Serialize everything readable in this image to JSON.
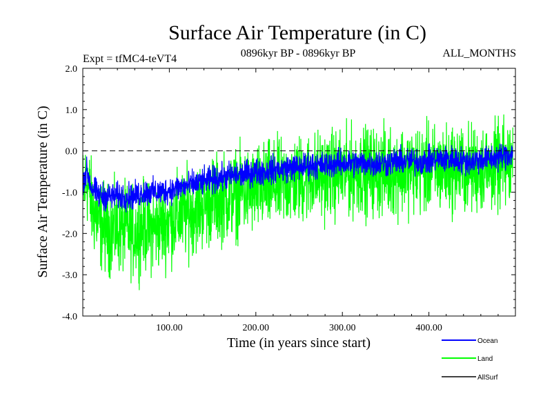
{
  "chart_data": {
    "type": "line",
    "title": "Surface Air Temperature (in C)",
    "subtitle_left": "Expt = tfMC4-teVT4",
    "subtitle_center": "0896kyr BP - 0896kyr BP",
    "subtitle_right": "ALL_MONTHS",
    "xlabel": "Time (in years since start)",
    "ylabel": "Surface Air Temperature (in C)",
    "xlim": [
      0,
      500
    ],
    "ylim": [
      -4,
      2
    ],
    "x_ticks": [
      100,
      200,
      300,
      400
    ],
    "x_tick_labels": [
      "100.00",
      "200.00",
      "300.00",
      "400.00"
    ],
    "y_ticks": [
      -4,
      -3,
      -2,
      -1,
      0,
      1,
      2
    ],
    "y_tick_labels": [
      "-4.0",
      "-3.0",
      "-2.0",
      "-1.0",
      "0.0",
      "1.0",
      "2.0"
    ],
    "reference_line": 0,
    "series": [
      {
        "name": "Land",
        "color": "#00ff00",
        "x": [
          0,
          5,
          10,
          20,
          30,
          40,
          50,
          60,
          70,
          80,
          90,
          100,
          110,
          120,
          130,
          140,
          150,
          160,
          170,
          180,
          190,
          200,
          210,
          220,
          230,
          240,
          250,
          260,
          270,
          280,
          290,
          300,
          310,
          320,
          330,
          340,
          350,
          360,
          370,
          380,
          390,
          400,
          410,
          420,
          430,
          440,
          450,
          460,
          470,
          480,
          490,
          497
        ],
        "y": [
          -1.0,
          -0.7,
          -1.3,
          -1.8,
          -1.9,
          -1.9,
          -1.9,
          -2.0,
          -1.8,
          -1.9,
          -1.8,
          -1.7,
          -1.6,
          -1.5,
          -1.4,
          -1.3,
          -1.2,
          -1.15,
          -1.1,
          -1.0,
          -1.0,
          -0.95,
          -0.9,
          -0.85,
          -0.8,
          -0.75,
          -0.7,
          -0.65,
          -0.6,
          -0.6,
          -0.55,
          -0.55,
          -0.5,
          -0.5,
          -0.5,
          -0.5,
          -0.5,
          -0.5,
          -0.45,
          -0.45,
          -0.45,
          -0.45,
          -0.45,
          -0.45,
          -0.4,
          -0.45,
          -0.45,
          -0.4,
          -0.4,
          -0.4,
          -0.35,
          -0.3
        ],
        "noise_amplitude": 0.8
      },
      {
        "name": "Ocean",
        "color": "#0000ff",
        "x": [
          0,
          5,
          10,
          20,
          30,
          40,
          50,
          60,
          70,
          80,
          90,
          100,
          110,
          120,
          130,
          140,
          150,
          160,
          170,
          180,
          190,
          200,
          210,
          220,
          230,
          240,
          250,
          260,
          270,
          280,
          290,
          300,
          310,
          320,
          330,
          340,
          350,
          360,
          370,
          380,
          390,
          400,
          410,
          420,
          430,
          440,
          450,
          460,
          470,
          480,
          490,
          497
        ],
        "y": [
          -0.7,
          -0.5,
          -0.9,
          -1.1,
          -1.1,
          -1.1,
          -1.1,
          -1.1,
          -1.0,
          -1.0,
          -1.0,
          -0.95,
          -0.9,
          -0.85,
          -0.8,
          -0.75,
          -0.7,
          -0.65,
          -0.6,
          -0.6,
          -0.55,
          -0.5,
          -0.5,
          -0.45,
          -0.45,
          -0.4,
          -0.4,
          -0.35,
          -0.35,
          -0.35,
          -0.3,
          -0.3,
          -0.3,
          -0.3,
          -0.3,
          -0.3,
          -0.3,
          -0.25,
          -0.25,
          -0.25,
          -0.25,
          -0.25,
          -0.2,
          -0.2,
          -0.2,
          -0.25,
          -0.25,
          -0.2,
          -0.2,
          -0.15,
          -0.1,
          -0.05
        ],
        "noise_amplitude": 0.25
      },
      {
        "name": "AllSurf",
        "color": "#000000",
        "x": [],
        "y": []
      }
    ],
    "legend": [
      {
        "name": "Ocean",
        "color": "#0000ff"
      },
      {
        "name": "Land",
        "color": "#00ff00"
      },
      {
        "name": "AllSurf",
        "color": "#000000"
      }
    ],
    "legend_placement": "bottom-right"
  }
}
